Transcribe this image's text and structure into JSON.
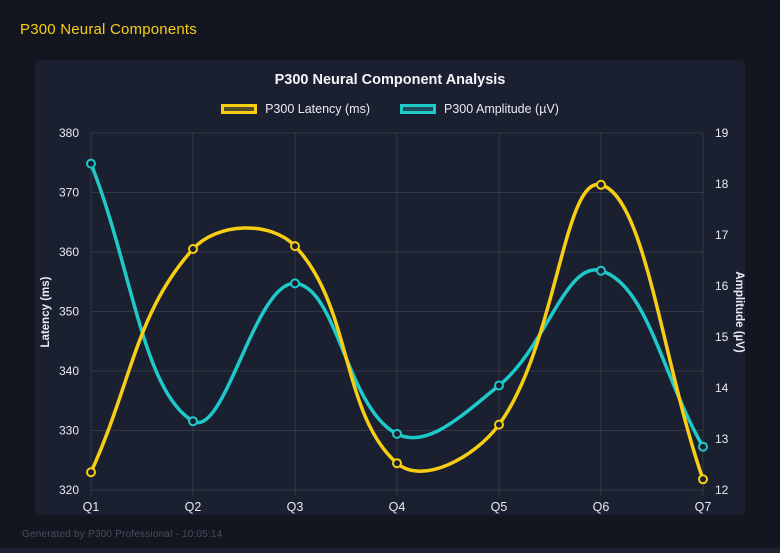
{
  "page": {
    "title": "P300 Neural Components",
    "footer": "Generated by P300 Professional - 10:05:14"
  },
  "colors": {
    "bg": "#14161f",
    "card": "#1b2030",
    "accent": "#f7ce14",
    "text": "#e7eaf2",
    "muted": "#474d61",
    "grid": "rgba(255,255,255,0.10)"
  },
  "chart_data": {
    "type": "line",
    "title": "P300 Neural Component Analysis",
    "categories": [
      "Q1",
      "Q2",
      "Q3",
      "Q4",
      "Q5",
      "Q6",
      "Q7"
    ],
    "series": [
      {
        "name": "P300 Latency (ms)",
        "axis": "left",
        "color": "#f7ce14",
        "values": [
          323,
          360.5,
          361,
          324.5,
          331,
          371.3,
          321.8
        ]
      },
      {
        "name": "P300 Amplitude (µV)",
        "axis": "right",
        "color": "#1ec9c9",
        "values": [
          18.4,
          13.35,
          16.05,
          13.1,
          14.05,
          16.3,
          12.85
        ]
      }
    ],
    "left_axis": {
      "label": "Latency (ms)",
      "min": 320,
      "max": 380,
      "step": 10
    },
    "right_axis": {
      "label": "Amplitude (µV)",
      "min": 12,
      "max": 19,
      "step": 1
    },
    "grid": true,
    "legend_position": "top",
    "line_tension": 0.4,
    "point_style": "ring"
  }
}
